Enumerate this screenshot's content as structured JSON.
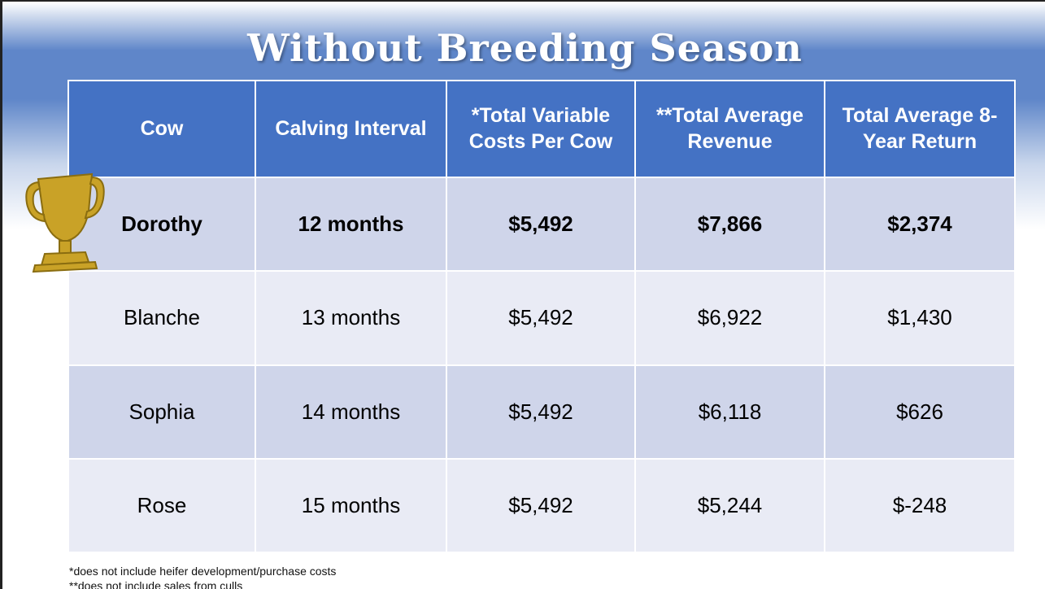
{
  "title": "Without Breeding Season",
  "table": {
    "header": [
      "Cow",
      "Calving Interval",
      "*Total Variable Costs Per Cow",
      "**Total Average Revenue",
      "Total Average 8-Year Return"
    ],
    "rows": [
      [
        "Dorothy",
        "12 months",
        "$5,492",
        "$7,866",
        "$2,374"
      ],
      [
        "Blanche",
        "13 months",
        "$5,492",
        "$6,922",
        "$1,430"
      ],
      [
        "Sophia",
        "14 months",
        "$5,492",
        "$6,118",
        "$626"
      ],
      [
        "Rose",
        "15 months",
        "$5,492",
        "$5,244",
        "$-248"
      ]
    ]
  },
  "footnotes": [
    "*does not include heifer development/purchase costs",
    "**does not include sales from culls"
  ]
}
